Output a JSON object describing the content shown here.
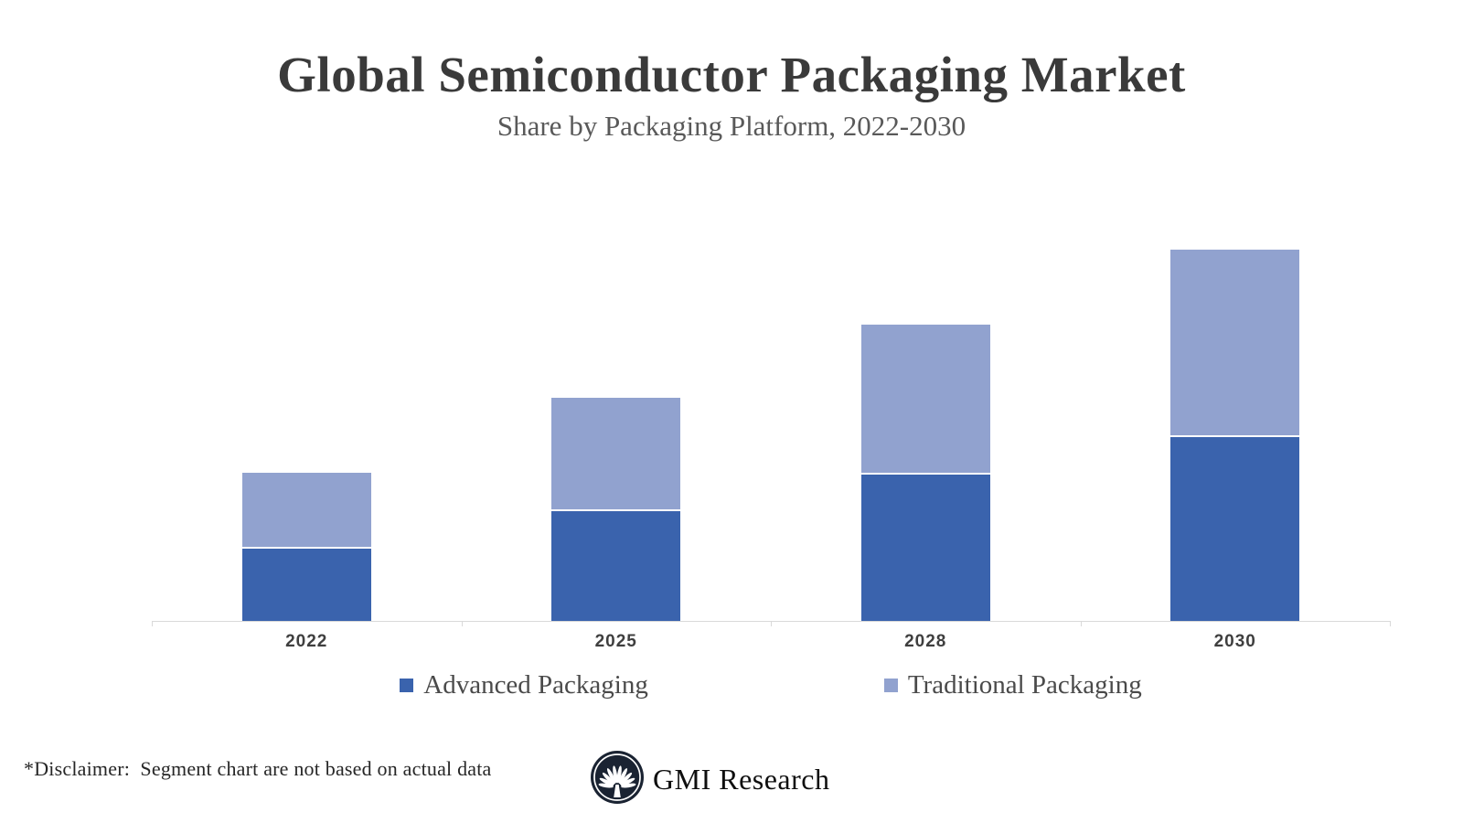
{
  "chart_data": {
    "type": "bar",
    "stacked": true,
    "title": "Global Semiconductor Packaging Market",
    "subtitle": "Share by Packaging Platform, 2022-2030",
    "categories": [
      "2022",
      "2025",
      "2028",
      "2030"
    ],
    "series": [
      {
        "name": "Advanced Packaging",
        "color": "#3A63AD",
        "values": [
          20,
          30,
          40,
          50
        ]
      },
      {
        "name": "Traditional Packaging",
        "color": "#91A2CF",
        "values": [
          20,
          30,
          40,
          50
        ]
      }
    ],
    "xlabel": "",
    "ylabel": "",
    "ylim": [
      0,
      105
    ],
    "value_axis_visible": false,
    "gridlines": false,
    "legend_position": "bottom-center"
  },
  "footer": {
    "disclaimer": "*Disclaimer:  Segment chart are not based on actual data",
    "brand_name": "GMI Research",
    "logo_icon": "fan-tree-logo-icon",
    "logo_color": "#1A2332"
  },
  "style": {
    "axis_color": "#D9D9D9",
    "background": "#FFFFFF"
  }
}
